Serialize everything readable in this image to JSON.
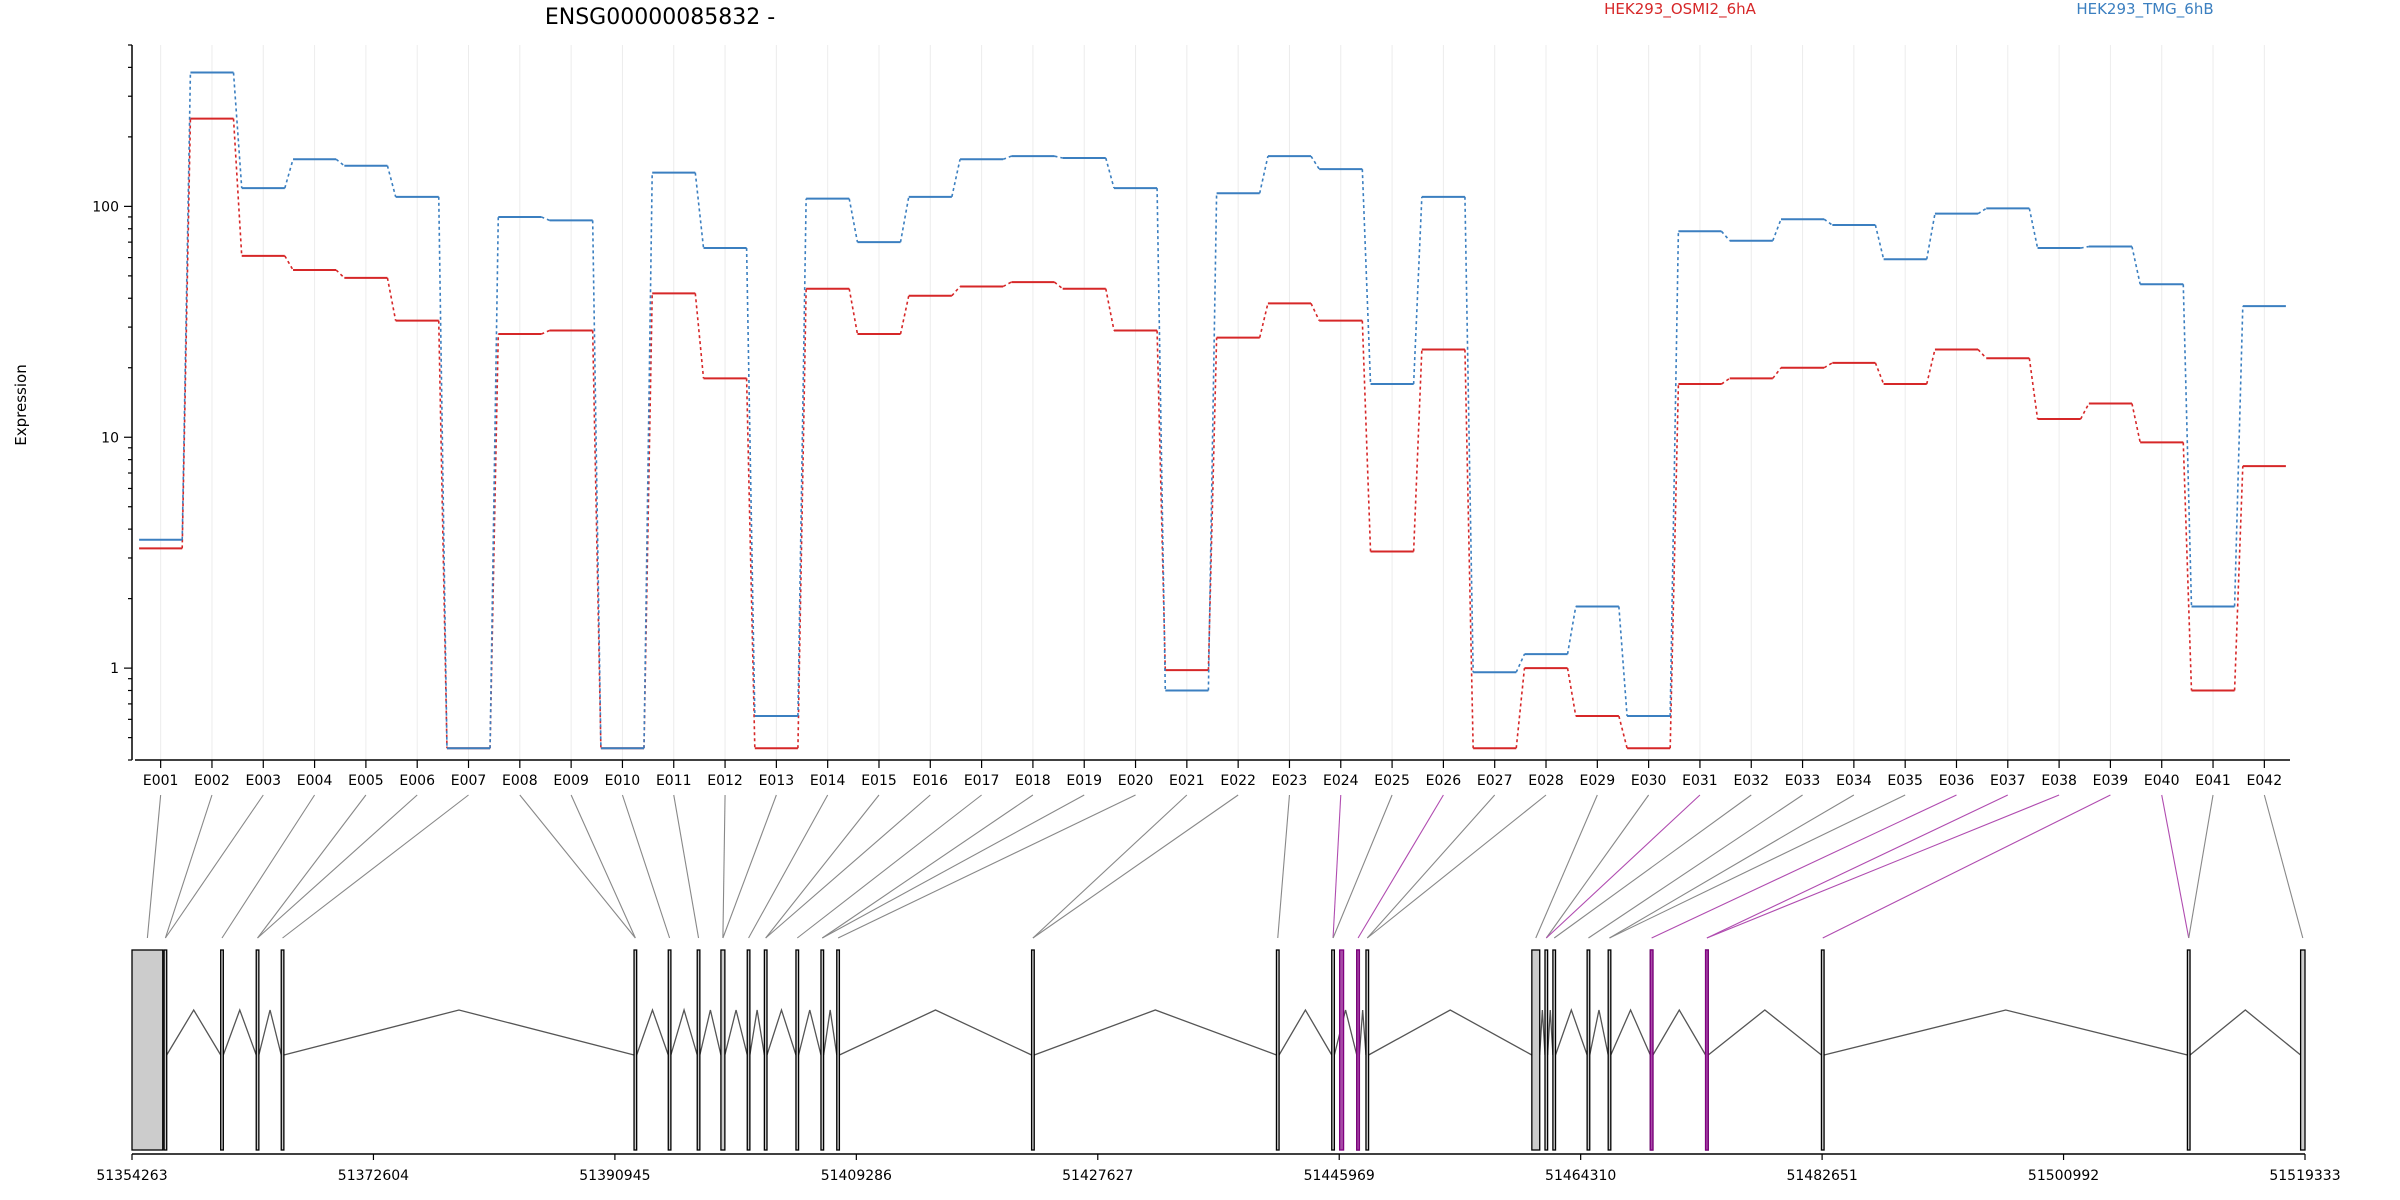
{
  "chart_data": {
    "type": "line",
    "title": "ENSG00000085832 -",
    "ylabel": "Expression",
    "xlabel": "",
    "yscale": "log",
    "ylim": [
      0.4,
      500
    ],
    "yticks": [
      1,
      10,
      100
    ],
    "ytick_labels": [
      "1",
      "10",
      "100"
    ],
    "grid": "vertical-minor",
    "legend_placement": "top-right",
    "categories": [
      "E001",
      "E002",
      "E003",
      "E004",
      "E005",
      "E006",
      "E007",
      "E008",
      "E009",
      "E010",
      "E011",
      "E012",
      "E013",
      "E014",
      "E015",
      "E016",
      "E017",
      "E018",
      "E019",
      "E020",
      "E021",
      "E022",
      "E023",
      "E024",
      "E025",
      "E026",
      "E027",
      "E028",
      "E029",
      "E030",
      "E031",
      "E032",
      "E033",
      "E034",
      "E035",
      "E036",
      "E037",
      "E038",
      "E039",
      "E040",
      "E041",
      "E042"
    ],
    "series": [
      {
        "name": "HEK293_OSMI2_6hA",
        "color": "#d62728",
        "values": [
          3.3,
          240,
          61,
          53,
          49,
          32,
          0.45,
          28,
          29,
          0.45,
          42,
          18,
          0.45,
          44,
          28,
          41,
          45,
          47,
          44,
          29,
          0.98,
          27,
          38,
          32,
          3.2,
          24,
          0.45,
          1.0,
          0.62,
          0.45,
          17,
          18,
          20,
          21,
          17,
          24,
          22,
          12,
          14,
          9.5,
          0.8,
          7.5
        ]
      },
      {
        "name": "HEK293_TMG_6hB",
        "color": "#3b7fc0",
        "values": [
          3.6,
          380,
          120,
          160,
          150,
          110,
          0.45,
          90,
          87,
          0.45,
          140,
          66,
          0.62,
          108,
          70,
          110,
          160,
          165,
          162,
          120,
          0.8,
          114,
          165,
          145,
          17,
          110,
          0.96,
          1.15,
          1.85,
          0.62,
          78,
          71,
          88,
          83,
          59,
          93,
          98,
          66,
          67,
          46,
          1.85,
          37
        ]
      }
    ],
    "genome": {
      "tick_labels": [
        "51354263",
        "51372604",
        "51390945",
        "51409286",
        "51427627",
        "51445969",
        "51464310",
        "51482651",
        "51500992",
        "51519333"
      ],
      "start": 51354263,
      "end": 51519333,
      "exons": [
        [
          51354263,
          51356600,
          "#cccccc"
        ],
        [
          51356700,
          51356900,
          "#cccccc"
        ],
        [
          51361000,
          51361200,
          "#cccccc"
        ],
        [
          51363700,
          51363900,
          "#cccccc"
        ],
        [
          51365600,
          51365800,
          "#cccccc"
        ],
        [
          51392400,
          51392600,
          "#cccccc"
        ],
        [
          51395000,
          51395200,
          "#cccccc"
        ],
        [
          51397200,
          51397400,
          "#cccccc"
        ],
        [
          51399000,
          51399300,
          "#cccccc"
        ],
        [
          51401000,
          51401200,
          "#cccccc"
        ],
        [
          51402300,
          51402500,
          "#cccccc"
        ],
        [
          51404700,
          51404900,
          "#cccccc"
        ],
        [
          51406600,
          51406800,
          "#cccccc"
        ],
        [
          51407800,
          51408000,
          "#cccccc"
        ],
        [
          51422600,
          51422800,
          "#cccccc"
        ],
        [
          51441200,
          51441400,
          "#cccccc"
        ],
        [
          51445400,
          51445600,
          "#cccccc"
        ],
        [
          51447300,
          51447500,
          "#cccccc"
        ],
        [
          51448000,
          51448200,
          "#cccccc"
        ],
        [
          51460600,
          51461200,
          "#cccccc"
        ],
        [
          51461600,
          51461800,
          "#cccccc"
        ],
        [
          51462200,
          51462400,
          "#cccccc"
        ],
        [
          51464800,
          51465000,
          "#cccccc"
        ],
        [
          51466400,
          51466600,
          "#cccccc"
        ],
        [
          51469600,
          51469800,
          "#cccccc"
        ],
        [
          51473800,
          51474000,
          "#cccccc"
        ],
        [
          51482600,
          51482800,
          "#cccccc"
        ],
        [
          51510400,
          51510600,
          "#cccccc"
        ],
        [
          51519000,
          51519333,
          "#cccccc"
        ]
      ],
      "highlight_exons": [
        [
          51446000,
          51446300
        ],
        [
          51447300,
          51447500
        ],
        [
          51469600,
          51469800
        ],
        [
          51473800,
          51474000
        ]
      ]
    }
  }
}
